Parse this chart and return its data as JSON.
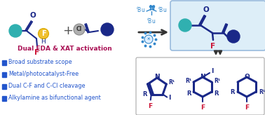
{
  "background": "#ffffff",
  "subtitle": "Dual EDA & XAT activation",
  "subtitle_color": "#aa1155",
  "bullets": [
    "Broad substrate scope",
    "Metal/photocatalyst-Free",
    "Dual C-F and C-Cl cleavage",
    "Alkylamine as bifunctional agent"
  ],
  "bullet_color": "#2255cc",
  "teal": "#30b0b0",
  "navy": "#1a2888",
  "yellow": "#f0c030",
  "gray": "#b0b0b0",
  "red_F": "#cc1133",
  "blue_text": "#3388cc",
  "dark": "#222222",
  "box_fill": "#ddeef8",
  "box_edge": "#99bbdd",
  "bot_box_fill": "#ffffff",
  "bot_box_edge": "#aaaaaa",
  "ring_color": "#1a2888"
}
